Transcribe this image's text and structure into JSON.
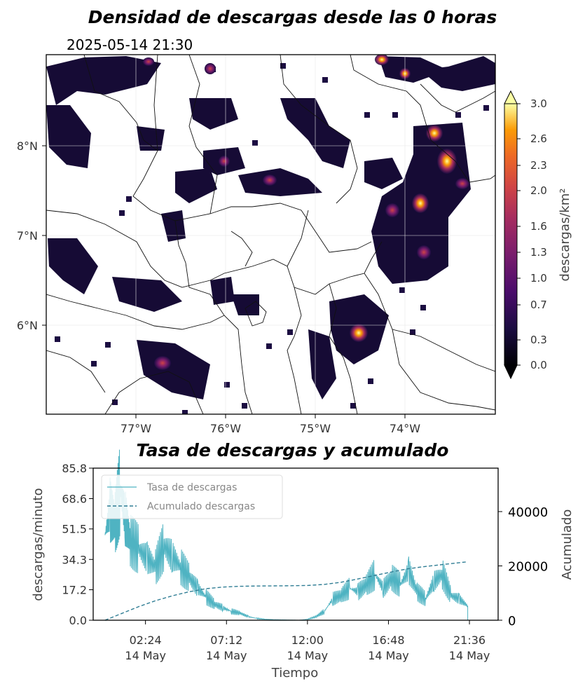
{
  "map": {
    "title": "Densidad de descargas desde las 0 horas",
    "timestamp": "2025-05-14 21:30",
    "x_ticks": [
      "77°W",
      "76°W",
      "75°W",
      "74°W"
    ],
    "y_ticks": [
      "8°N",
      "7°N",
      "6°N"
    ],
    "colorbar": {
      "label": "descargas/km²",
      "ticks": [
        "3.0",
        "2.6",
        "2.3",
        "2.0",
        "1.6",
        "1.3",
        "1.0",
        "0.7",
        "0.3",
        "0.0"
      ],
      "colormap": "inferno",
      "range": [
        0.0,
        3.0
      ]
    }
  },
  "chart_data": {
    "type": "line",
    "title": "Tasa de descargas y acumulado",
    "xlabel": "Tiempo",
    "ylabel": "descargas/minuto",
    "ylabel_right": "Acumulado",
    "x_ticks": [
      {
        "time": "02:24",
        "date": "14 May"
      },
      {
        "time": "07:12",
        "date": "14 May"
      },
      {
        "time": "12:00",
        "date": "14 May"
      },
      {
        "time": "16:48",
        "date": "14 May"
      },
      {
        "time": "21:36",
        "date": "14 May"
      }
    ],
    "y_ticks_left": [
      "85.8",
      "68.6",
      "51.5",
      "34.3",
      "17.2",
      "0.0"
    ],
    "y_ticks_right": [
      "40000",
      "20000",
      "0"
    ],
    "ylim": [
      0,
      85.8
    ],
    "ylim_right": [
      0,
      56000
    ],
    "legend": [
      "Tasa de descargas",
      "Acumulado descargas"
    ],
    "legend_position": "top-left",
    "series": [
      {
        "name": "Tasa de descargas",
        "color": "#4fb3c2",
        "x_hours": [
          0.0,
          0.3,
          0.6,
          0.9,
          1.2,
          1.5,
          2.0,
          2.5,
          3.0,
          3.5,
          4.0,
          4.5,
          5.0,
          5.5,
          6.0,
          6.5,
          7.0,
          7.5,
          8.0,
          8.5,
          9.0,
          9.5,
          10.0,
          10.5,
          11.0,
          11.5,
          12.0,
          12.5,
          13.0,
          13.5,
          14.0,
          14.5,
          15.0,
          15.5,
          16.0,
          16.5,
          17.0,
          17.5,
          18.0,
          18.5,
          19.0,
          19.5,
          20.0,
          20.5,
          21.0,
          21.5
        ],
        "values": [
          48,
          62,
          55,
          74,
          58,
          45,
          40,
          35,
          30,
          42,
          36,
          30,
          24,
          18,
          13,
          9,
          7,
          5,
          4,
          2,
          1,
          0.5,
          0.3,
          0.2,
          0.1,
          0,
          0.5,
          2,
          5,
          12,
          14,
          18,
          16,
          20,
          26,
          18,
          24,
          20,
          28,
          16,
          12,
          22,
          26,
          14,
          12,
          8
        ]
      },
      {
        "name": "Acumulado descargas",
        "color": "#2f7d94",
        "x_hours": [
          0.0,
          1.0,
          2.0,
          3.0,
          4.0,
          5.0,
          6.0,
          7.0,
          8.0,
          9.0,
          10.0,
          11.0,
          12.0,
          13.0,
          14.0,
          15.0,
          16.0,
          17.0,
          18.0,
          19.0,
          20.0,
          21.0,
          21.5
        ],
        "values": [
          0,
          2500,
          5000,
          7200,
          9000,
          10500,
          11600,
          12200,
          12500,
          12600,
          12650,
          12700,
          12800,
          13200,
          14000,
          15200,
          16500,
          17800,
          19000,
          19800,
          20500,
          21200,
          21500
        ]
      }
    ]
  }
}
